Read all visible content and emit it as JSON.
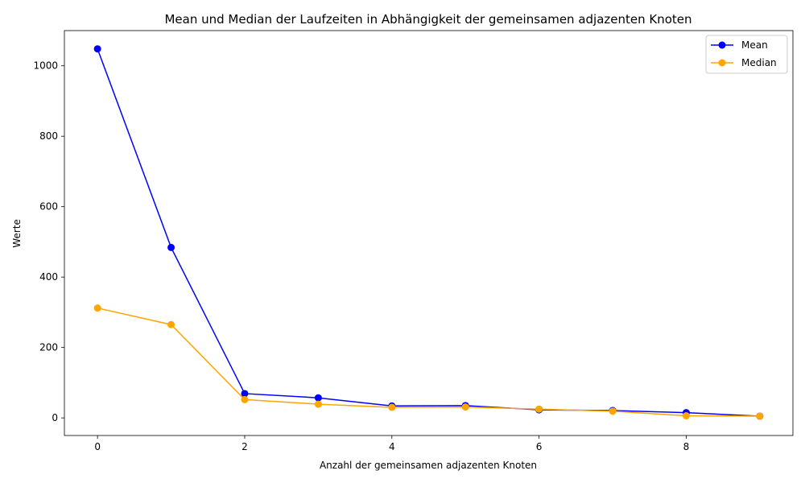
{
  "chart_data": {
    "type": "line",
    "title": "Mean und Median der Laufzeiten in Abhängigkeit der gemeinsamen adjazenten Knoten",
    "xlabel": "Anzahl der gemeinsamen adjazenten Knoten",
    "ylabel": "Werte",
    "xlim": [
      -0.45,
      9.45
    ],
    "ylim": [
      -50,
      1100
    ],
    "xticks": [
      0,
      2,
      4,
      6,
      8
    ],
    "yticks": [
      0,
      200,
      400,
      600,
      800,
      1000
    ],
    "grid": false,
    "legend_position": "top-right",
    "x": [
      0,
      1,
      2,
      3,
      4,
      5,
      6,
      7,
      8,
      9
    ],
    "series": [
      {
        "name": "Mean",
        "color": "#0000ff",
        "values": [
          1048,
          484,
          69,
          57,
          34,
          35,
          23,
          21,
          15,
          5
        ]
      },
      {
        "name": "Median",
        "color": "#ffa500",
        "values": [
          312,
          265,
          52,
          39,
          30,
          31,
          25,
          19,
          6,
          5
        ]
      }
    ]
  }
}
